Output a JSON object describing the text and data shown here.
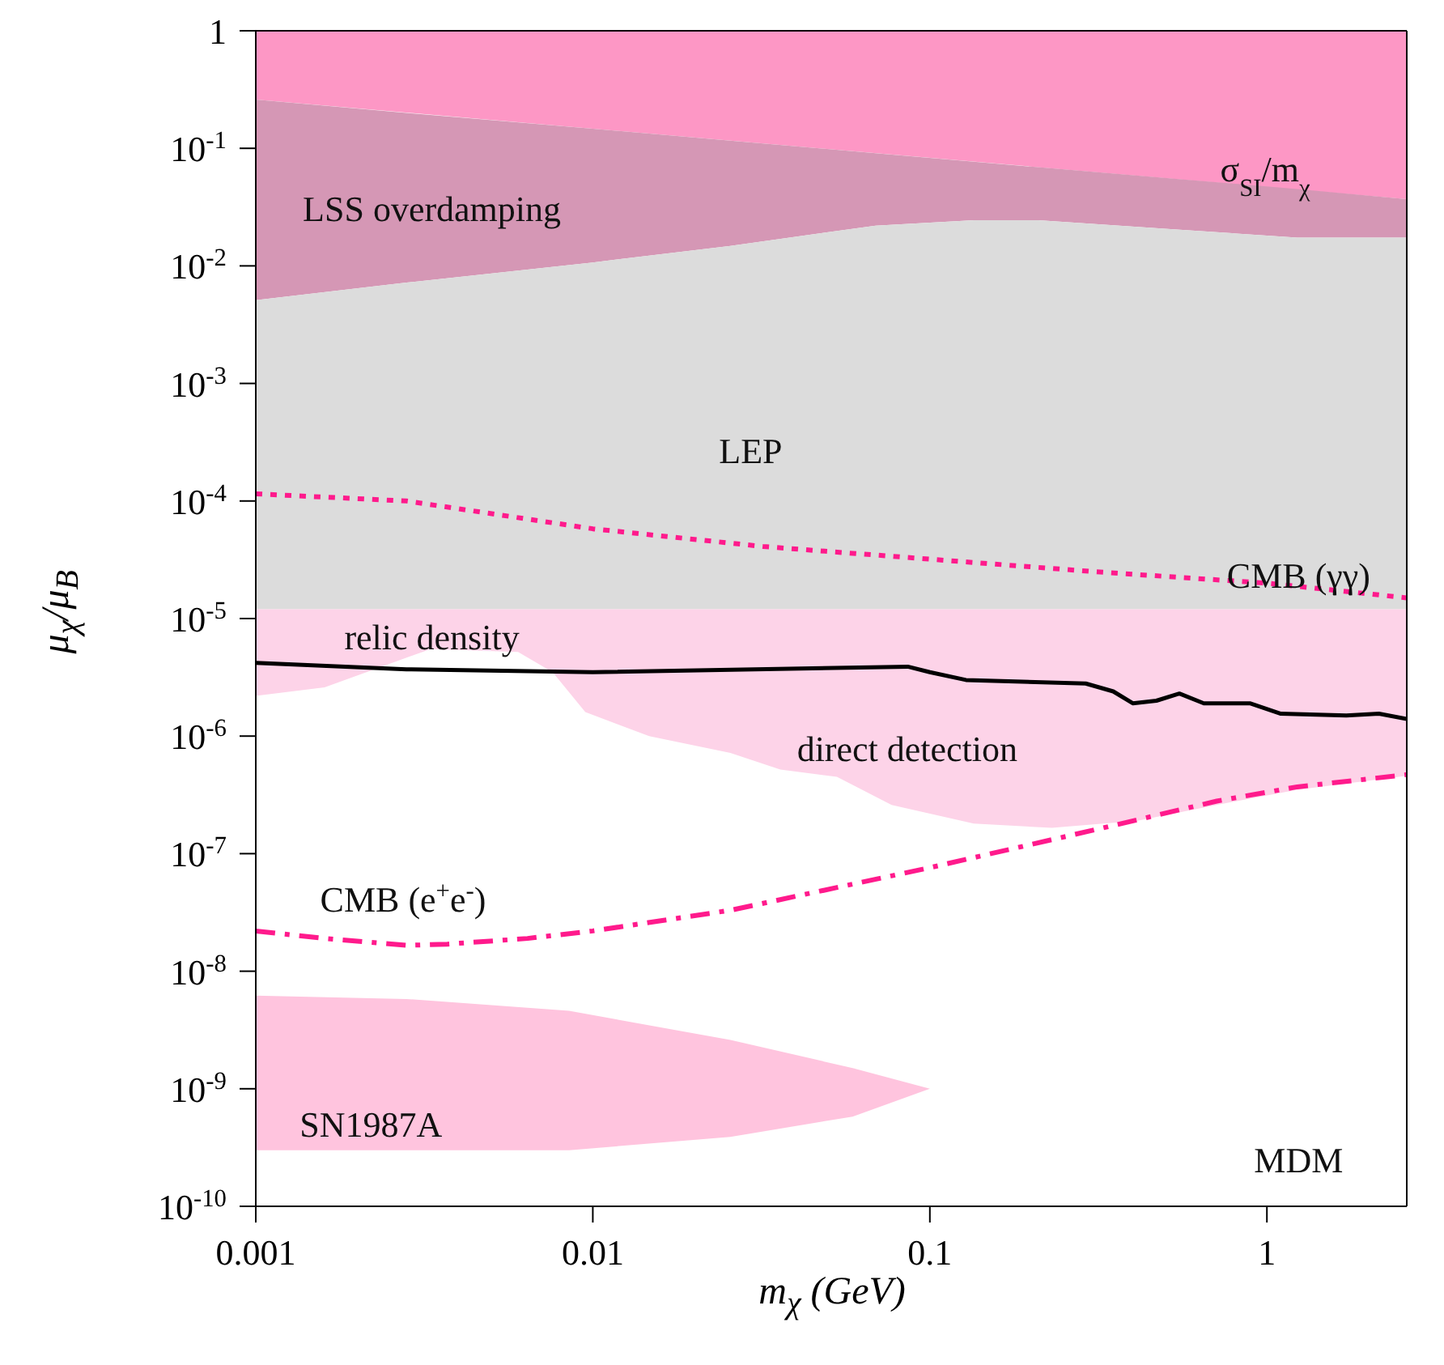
{
  "chart_data": {
    "type": "area",
    "xlabel": "m$_{χ}$ (GeV)",
    "ylabel": "μ$_{χ}$/μ$_{B}$",
    "log": "xy",
    "grid": false,
    "legend": false,
    "xlim": [
      0.001,
      2.6
    ],
    "xticks": [
      0.001,
      0.01,
      0.1,
      1
    ],
    "ylim": [
      1e-10,
      1
    ],
    "yticks": [
      {
        "value": 1e-10,
        "label": "10$^{-10}$"
      },
      {
        "value": 1e-09,
        "label": "10$^{-9}$"
      },
      {
        "value": 1e-08,
        "label": "10$^{-8}$"
      },
      {
        "value": 1e-07,
        "label": "10$^{-7}$"
      },
      {
        "value": 1e-06,
        "label": "10$^{-6}$"
      },
      {
        "value": 1e-05,
        "label": "10$^{-5}$"
      },
      {
        "value": 0.0001,
        "label": "10$^{-4}$"
      },
      {
        "value": 0.001,
        "label": "10$^{-3}$"
      },
      {
        "value": 0.01,
        "label": "10$^{-2}$"
      },
      {
        "value": 0.1,
        "label": "10$^{-1}$"
      },
      1
    ],
    "series": [
      {
        "color": "#fd97c5",
        "x": [
          0.001,
          2.6
        ],
        "values": [
          null,
          null
        ],
        "upper": [
          1,
          1
        ],
        "lower": [
          0.26,
          0.037
        ]
      },
      {
        "color": "#d597b5",
        "x": [
          0.001,
          0.0028,
          0.01,
          0.0256,
          0.069,
          0.135,
          0.21,
          0.54,
          1.23,
          2.6
        ],
        "values": [
          null,
          null,
          null,
          null,
          null,
          null,
          null,
          null,
          null,
          null
        ],
        "upper": [
          0.26,
          0.2,
          0.147,
          0.116,
          0.091,
          0.077,
          0.069,
          0.055,
          0.045,
          0.037
        ],
        "lower": [
          0.0051,
          0.0072,
          0.0107,
          0.0148,
          0.022,
          0.0245,
          0.0245,
          0.0204,
          0.0174,
          0.0174
        ]
      },
      {
        "color": "#dcdcdc",
        "x": [
          0.001,
          0.0028,
          0.01,
          0.0256,
          0.069,
          0.135,
          0.21,
          0.54,
          1.23,
          2.6
        ],
        "values": [
          null,
          null,
          null,
          null,
          null,
          null,
          null,
          null,
          null,
          null
        ],
        "upper": [
          0.0051,
          0.0072,
          0.0107,
          0.0148,
          0.022,
          0.0245,
          0.0245,
          0.0204,
          0.0174,
          0.0174
        ],
        "lower": [
          1.2e-05,
          1.2e-05,
          1.2e-05,
          1.2e-05,
          1.2e-05,
          1.2e-05,
          1.2e-05,
          1.2e-05,
          1.2e-05,
          1.2e-05
        ]
      },
      {
        "color": "#fdd3e8",
        "x": [
          0.001,
          0.0016,
          0.0033,
          0.006,
          0.0076,
          0.0095,
          0.0147,
          0.0256,
          0.036,
          0.053,
          0.077,
          0.135,
          0.23,
          0.41,
          0.71,
          1.23,
          2.6
        ],
        "values": [
          null,
          null,
          null,
          null,
          null,
          null,
          null,
          null,
          null,
          null,
          null,
          null,
          null,
          null,
          null,
          null,
          null
        ],
        "upper": [
          1.2e-05,
          1.2e-05,
          1.2e-05,
          1.2e-05,
          1.2e-05,
          1.2e-05,
          1.2e-05,
          1.2e-05,
          1.2e-05,
          1.2e-05,
          1.2e-05,
          1.2e-05,
          1.2e-05,
          1.2e-05,
          1.2e-05,
          1.2e-05,
          1.2e-05
        ],
        "lower": [
          2.2e-06,
          2.6e-06,
          5.5e-06,
          5.2e-06,
          3.5e-06,
          1.6e-06,
          1e-06,
          7.2e-07,
          5.2e-07,
          4.5e-07,
          2.6e-07,
          1.8e-07,
          1.66e-07,
          1.9e-07,
          2.6e-07,
          3.5e-07,
          4.6e-07
        ]
      },
      {
        "color": "#ffc4de",
        "x": [
          0.001,
          0.0028,
          0.0085,
          0.0256,
          0.059,
          0.1
        ],
        "values": [
          null,
          null,
          null,
          null,
          null,
          null
        ],
        "upper": [
          6.2e-09,
          5.8e-09,
          4.6e-09,
          2.6e-09,
          1.5e-09,
          1e-09
        ],
        "lower": [
          3e-10,
          3e-10,
          3e-10,
          3.9e-10,
          5.8e-10,
          1e-09
        ]
      },
      {
        "type": "line",
        "color": "#ff1a8c",
        "line_style": "dotted",
        "x": [
          0.001,
          0.0028,
          0.01,
          0.032,
          0.1,
          0.31,
          1,
          2.6
        ],
        "values": [
          0.000115,
          0.0001,
          5.8e-05,
          4.1e-05,
          3.2e-05,
          2.5e-05,
          2e-05,
          1.5e-05
        ]
      },
      {
        "type": "line",
        "color": "#000000",
        "line_style": "solid",
        "x": [
          0.001,
          0.0028,
          0.01,
          0.086,
          0.1,
          0.128,
          0.29,
          0.35,
          0.4,
          0.47,
          0.55,
          0.65,
          0.89,
          1.1,
          1.72,
          2.15,
          2.6
        ],
        "values": [
          4.2e-06,
          3.7e-06,
          3.5e-06,
          3.9e-06,
          3.5e-06,
          3e-06,
          2.8e-06,
          2.4e-06,
          1.9e-06,
          2e-06,
          2.3e-06,
          1.9e-06,
          1.9e-06,
          1.55e-06,
          1.5e-06,
          1.55e-06,
          1.4e-06
        ]
      },
      {
        "type": "line",
        "color": "#ff1a8c",
        "line_style": "dashdot",
        "x": [
          0.001,
          0.0016,
          0.0028,
          0.0037,
          0.0064,
          0.01,
          0.0256,
          0.1,
          0.31,
          0.71,
          1.23,
          2.6
        ],
        "values": [
          2.2e-08,
          1.9e-08,
          1.66e-08,
          1.7e-08,
          1.9e-08,
          2.2e-08,
          3.3e-08,
          7.6e-08,
          1.6e-07,
          2.8e-07,
          3.7e-07,
          4.7e-07
        ]
      }
    ],
    "annotations": [
      "σ$_{SI}$/m$_{χ}$",
      "LSS overdamping",
      "LEP",
      "CMB (γγ)",
      "relic density",
      "direct detection",
      "CMB (e$^{+}$e$^{-}$)",
      "SN1987A",
      "MDM"
    ]
  }
}
